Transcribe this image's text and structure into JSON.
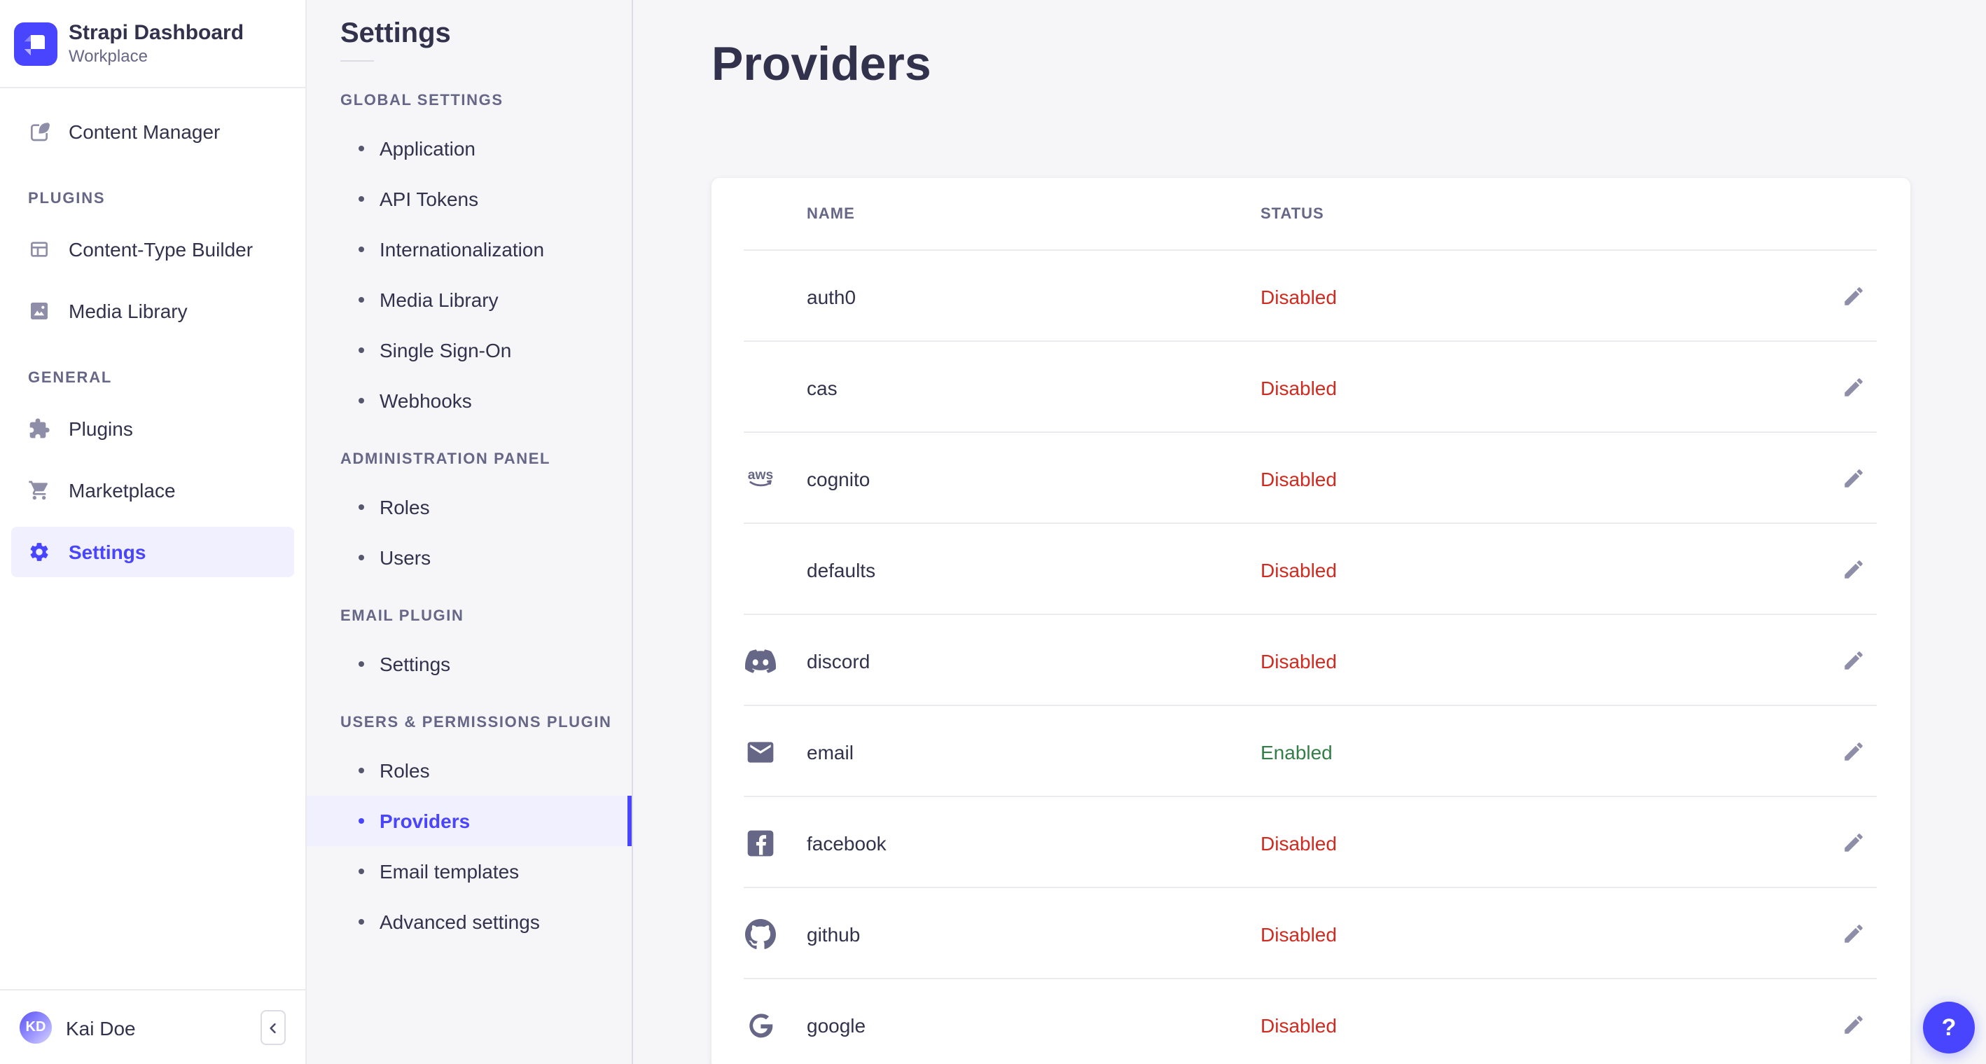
{
  "app": {
    "name": "Strapi Dashboard",
    "workspace": "Workplace"
  },
  "nav": {
    "sections": [
      {
        "title": null,
        "items": [
          {
            "icon": "content-manager-icon",
            "label": "Content Manager"
          }
        ]
      },
      {
        "title": "PLUGINS",
        "items": [
          {
            "icon": "content-type-builder-icon",
            "label": "Content-Type Builder"
          },
          {
            "icon": "media-library-icon",
            "label": "Media Library"
          }
        ]
      },
      {
        "title": "GENERAL",
        "items": [
          {
            "icon": "plugins-icon",
            "label": "Plugins"
          },
          {
            "icon": "marketplace-icon",
            "label": "Marketplace"
          },
          {
            "icon": "settings-icon",
            "label": "Settings",
            "active": true
          }
        ]
      }
    ],
    "user": {
      "initials": "KD",
      "name": "Kai Doe"
    }
  },
  "subnav": {
    "title": "Settings",
    "sections": [
      {
        "title": "GLOBAL SETTINGS",
        "items": [
          {
            "label": "Application"
          },
          {
            "label": "API Tokens"
          },
          {
            "label": "Internationalization"
          },
          {
            "label": "Media Library"
          },
          {
            "label": "Single Sign-On"
          },
          {
            "label": "Webhooks"
          }
        ]
      },
      {
        "title": "ADMINISTRATION PANEL",
        "items": [
          {
            "label": "Roles"
          },
          {
            "label": "Users"
          }
        ]
      },
      {
        "title": "EMAIL PLUGIN",
        "items": [
          {
            "label": "Settings"
          }
        ]
      },
      {
        "title": "USERS & PERMISSIONS PLUGIN",
        "items": [
          {
            "label": "Roles"
          },
          {
            "label": "Providers",
            "active": true
          },
          {
            "label": "Email templates"
          },
          {
            "label": "Advanced settings"
          }
        ]
      }
    ]
  },
  "main": {
    "title": "Providers",
    "table": {
      "columns": [
        "NAME",
        "STATUS"
      ],
      "rows": [
        {
          "icon": null,
          "name": "auth0",
          "status": "Disabled"
        },
        {
          "icon": null,
          "name": "cas",
          "status": "Disabled"
        },
        {
          "icon": "aws-icon",
          "name": "cognito",
          "status": "Disabled"
        },
        {
          "icon": null,
          "name": "defaults",
          "status": "Disabled"
        },
        {
          "icon": "discord-icon",
          "name": "discord",
          "status": "Disabled"
        },
        {
          "icon": "email-icon",
          "name": "email",
          "status": "Enabled"
        },
        {
          "icon": "facebook-icon",
          "name": "facebook",
          "status": "Disabled"
        },
        {
          "icon": "github-icon",
          "name": "github",
          "status": "Disabled"
        },
        {
          "icon": "google-icon",
          "name": "google",
          "status": "Disabled"
        }
      ]
    }
  },
  "help": {
    "label": "?"
  },
  "colors": {
    "primary": "#4945ff",
    "primary_bg": "#f0f0ff",
    "danger": "#d02b20",
    "success": "#328048",
    "text": "#32324d",
    "text_secondary": "#666687",
    "icon": "#8e8ea9",
    "border": "#eaeaef",
    "border_strong": "#dcdce4",
    "page_bg": "#f6f6f9",
    "surface": "#ffffff"
  }
}
